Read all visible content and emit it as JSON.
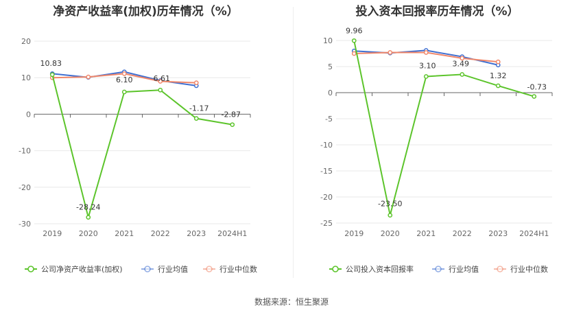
{
  "colors": {
    "company": "#5cc42b",
    "industry_avg": "#3f6fd1",
    "industry_median": "#f0876a",
    "grid": "#e8e8e8",
    "axis": "#999999"
  },
  "source_text": "数据来源：恒生聚源",
  "chart_data": [
    {
      "type": "line",
      "title": "净资产收益率(加权)历年情况（%）",
      "categories": [
        "2019",
        "2020",
        "2021",
        "2022",
        "2023",
        "2024H1"
      ],
      "ylim": [
        -30,
        20
      ],
      "yticks": [
        20,
        10,
        0,
        -10,
        -20,
        -30
      ],
      "legend_position": "bottom",
      "series": [
        {
          "name": "公司净资产收益率(加权)",
          "key": "company",
          "values": [
            10.83,
            -28.24,
            6.1,
            6.61,
            -1.17,
            -2.87
          ],
          "labels": [
            "10.83",
            "-28.24",
            "6.10",
            "6.61",
            "-1.17",
            "-2.87"
          ]
        },
        {
          "name": "行业均值",
          "key": "industry_avg",
          "values": [
            11.1,
            10.1,
            11.6,
            9.2,
            7.8,
            null
          ]
        },
        {
          "name": "行业中位数",
          "key": "industry_median",
          "values": [
            10.0,
            10.2,
            11.1,
            9.0,
            8.6,
            null
          ]
        }
      ]
    },
    {
      "type": "line",
      "title": "投入资本回报率历年情况（%）",
      "categories": [
        "2019",
        "2020",
        "2021",
        "2022",
        "2023",
        "2024H1"
      ],
      "ylim": [
        -25,
        10
      ],
      "yticks": [
        10,
        5,
        0,
        -5,
        -10,
        -15,
        -20,
        -25
      ],
      "legend_position": "bottom",
      "series": [
        {
          "name": "公司投入资本回报率",
          "key": "company",
          "values": [
            9.96,
            -23.5,
            3.1,
            3.49,
            1.32,
            -0.73
          ],
          "labels": [
            "9.96",
            "-23.50",
            "3.10",
            "3.49",
            "1.32",
            "-0.73"
          ]
        },
        {
          "name": "行业均值",
          "key": "industry_avg",
          "values": [
            8.0,
            7.6,
            8.1,
            6.9,
            5.3,
            null
          ]
        },
        {
          "name": "行业中位数",
          "key": "industry_median",
          "values": [
            7.5,
            7.7,
            7.7,
            6.6,
            5.9,
            null
          ]
        }
      ]
    }
  ]
}
